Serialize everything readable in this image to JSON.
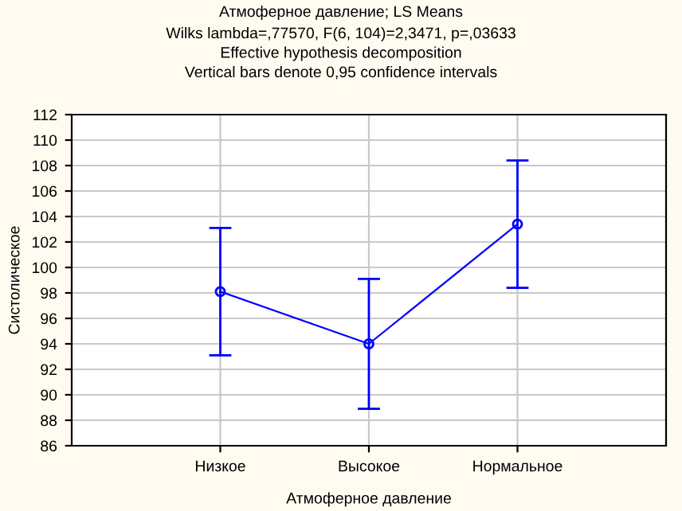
{
  "chart_data": {
    "type": "line",
    "title": "Атмоферное давление; LS Means",
    "subtitle": "Wilks lambda=,77570, F(6, 104)=2,3471, p=,03633\nEffective hypothesis decomposition\nVertical bars denote 0,95 confidence intervals",
    "xlabel": "Атмоферное давление",
    "ylabel": "Систолическое",
    "categories": [
      "Низкое",
      "Высокое",
      "Нормальное"
    ],
    "series": [
      {
        "color": "#0000ff",
        "values": [
          98.1,
          94.0,
          103.4
        ],
        "errors": [
          5.0,
          5.1,
          5.0
        ]
      }
    ],
    "ylim": [
      86,
      112
    ],
    "yticks": [
      86,
      88,
      90,
      92,
      94,
      96,
      98,
      100,
      102,
      104,
      106,
      108,
      110,
      112
    ],
    "grid": true,
    "marker": "circle",
    "line_style": "solid"
  }
}
